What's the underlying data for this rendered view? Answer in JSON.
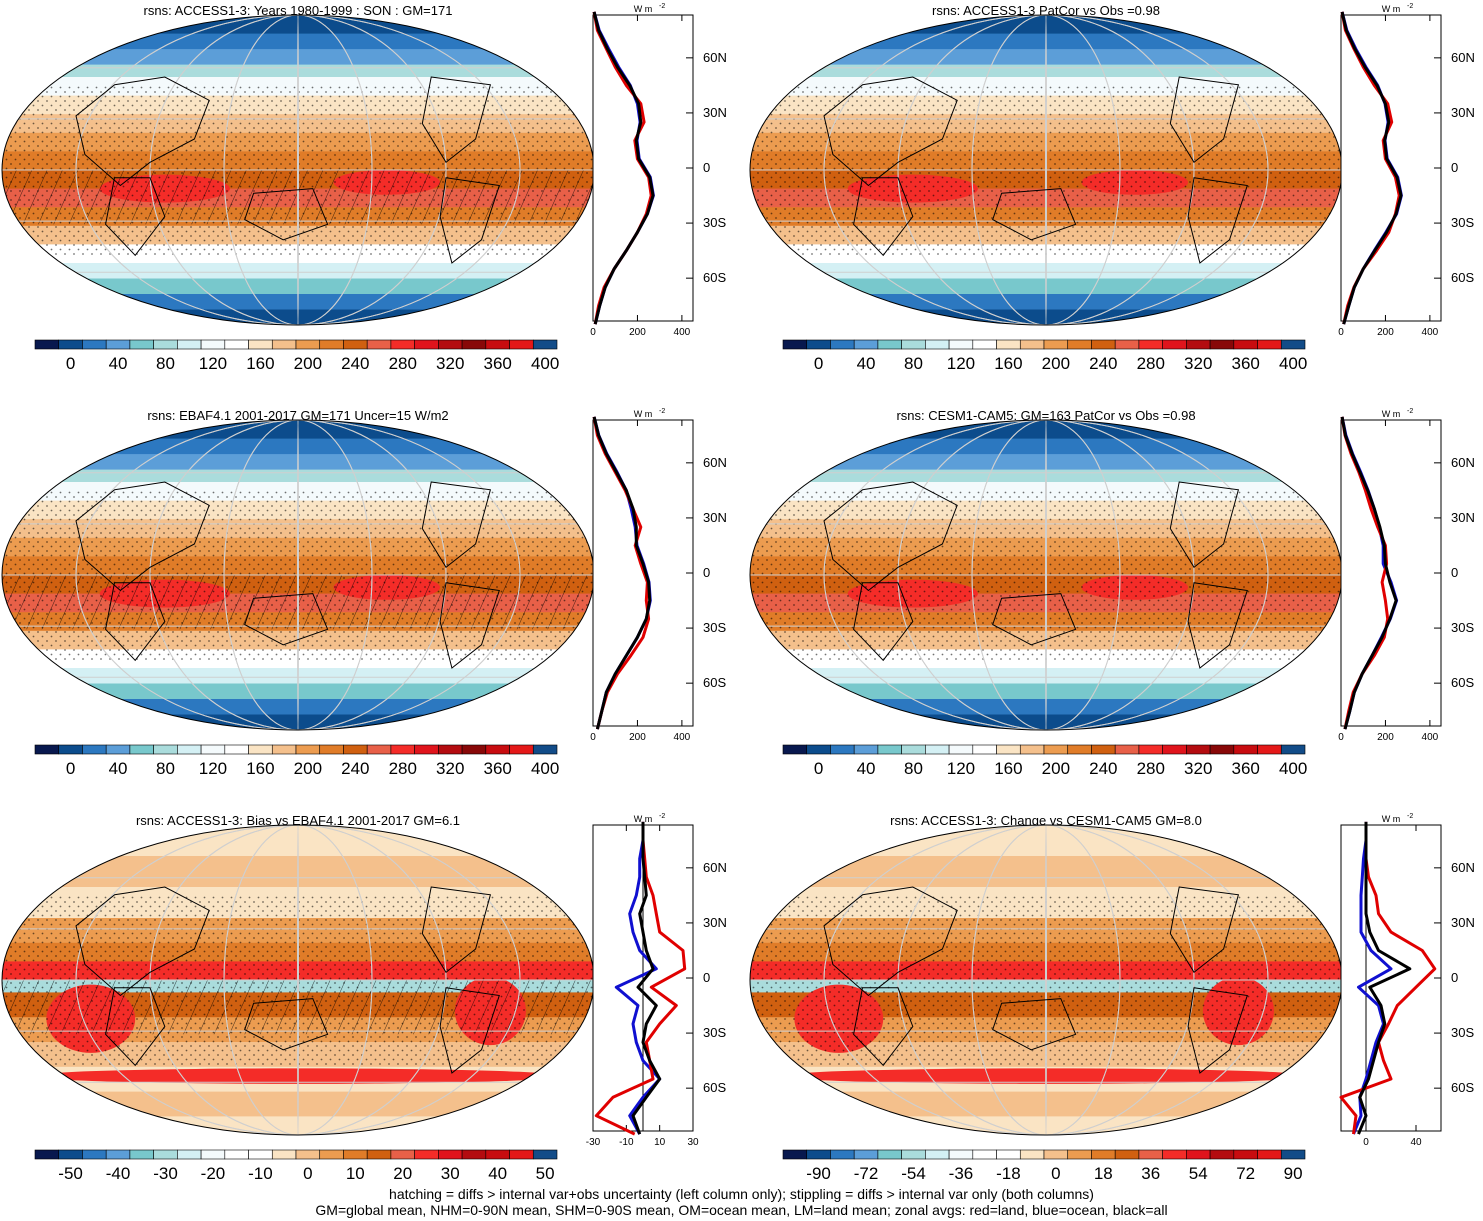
{
  "chart_data": [
    {
      "type": "heatmap",
      "title": "rsns: ACCESS1-3: Years 1980-1999 : SON : GM=171",
      "colorbar": {
        "ticks": [
          "0",
          "40",
          "80",
          "120",
          "160",
          "200",
          "240",
          "280",
          "320",
          "360",
          "400"
        ]
      },
      "profile": {
        "xticks": [
          "0",
          "200",
          "400"
        ],
        "xlim": [
          0,
          450
        ],
        "unit": "W m-2",
        "lat": [
          -85,
          -75,
          -65,
          -55,
          -45,
          -35,
          -25,
          -15,
          -5,
          5,
          15,
          25,
          35,
          45,
          55,
          65,
          75,
          85
        ],
        "series": [
          {
            "name": "all",
            "color": "#000000",
            "values": [
              10,
              30,
              55,
              95,
              150,
              200,
              245,
              270,
              255,
              205,
              195,
              215,
              205,
              165,
              110,
              65,
              25,
              5
            ]
          },
          {
            "name": "land",
            "color": "#e00000",
            "values": [
              10,
              25,
              50,
              95,
              150,
              200,
              240,
              262,
              250,
              200,
              188,
              230,
              215,
              150,
              100,
              60,
              20,
              5
            ]
          },
          {
            "name": "ocean",
            "color": "#1010d0",
            "values": [
              10,
              30,
              55,
              95,
              150,
              200,
              245,
              272,
              258,
              208,
              198,
              212,
              200,
              168,
              115,
              70,
              28,
              5
            ]
          }
        ]
      }
    },
    {
      "type": "heatmap",
      "title": "rsns: ACCESS1-3 PatCor vs Obs =0.98",
      "colorbar": {
        "ticks": [
          "0",
          "40",
          "80",
          "120",
          "160",
          "200",
          "240",
          "280",
          "320",
          "360",
          "400"
        ]
      },
      "profile": {
        "xticks": [
          "0",
          "200",
          "400"
        ],
        "xlim": [
          0,
          450
        ],
        "unit": "W m-2",
        "lat": [
          -85,
          -75,
          -65,
          -55,
          -45,
          -35,
          -25,
          -15,
          -5,
          5,
          15,
          25,
          35,
          45,
          55,
          65,
          75,
          85
        ],
        "series": [
          {
            "name": "all",
            "color": "#000000",
            "values": [
              12,
              35,
              60,
              100,
              152,
              205,
              248,
              270,
              252,
              205,
              196,
              215,
              200,
              162,
              108,
              62,
              24,
              5
            ]
          },
          {
            "name": "land",
            "color": "#e00000",
            "values": [
              12,
              30,
              58,
              100,
              160,
              215,
              245,
              262,
              245,
              200,
              190,
              228,
              210,
              150,
              100,
              58,
              20,
              5
            ]
          },
          {
            "name": "ocean",
            "color": "#1010d0",
            "values": [
              12,
              35,
              60,
              100,
              150,
              202,
              250,
              272,
              255,
              208,
              198,
              212,
              198,
              165,
              112,
              66,
              26,
              5
            ]
          }
        ]
      }
    },
    {
      "type": "heatmap",
      "title": "rsns: EBAF4.1 2001-2017 GM=171 Uncer=15 W/m2",
      "colorbar": {
        "ticks": [
          "0",
          "40",
          "80",
          "120",
          "160",
          "200",
          "240",
          "280",
          "320",
          "360",
          "400"
        ]
      },
      "profile": {
        "xticks": [
          "0",
          "200",
          "400"
        ],
        "xlim": [
          0,
          450
        ],
        "unit": "W m-2",
        "lat": [
          -85,
          -75,
          -65,
          -55,
          -45,
          -35,
          -25,
          -15,
          -5,
          5,
          15,
          25,
          35,
          45,
          55,
          65,
          75,
          85
        ],
        "series": [
          {
            "name": "all",
            "color": "#000000",
            "values": [
              20,
              40,
              60,
              100,
              150,
              200,
              240,
              255,
              250,
              225,
              195,
              195,
              180,
              150,
              105,
              60,
              25,
              5
            ]
          },
          {
            "name": "land",
            "color": "#e00000",
            "values": [
              20,
              40,
              65,
              110,
              170,
              225,
              250,
              240,
              245,
              215,
              190,
              215,
              180,
              145,
              100,
              55,
              20,
              5
            ]
          },
          {
            "name": "ocean",
            "color": "#1010d0",
            "values": [
              20,
              40,
              60,
              100,
              150,
              200,
              240,
              258,
              252,
              228,
              198,
              190,
              172,
              150,
              108,
              62,
              26,
              5
            ]
          }
        ]
      }
    },
    {
      "type": "heatmap",
      "title": "rsns: CESM1-CAM5: GM=163 PatCor vs Obs =0.98",
      "colorbar": {
        "ticks": [
          "0",
          "40",
          "80",
          "120",
          "160",
          "200",
          "240",
          "280",
          "320",
          "360",
          "400"
        ]
      },
      "profile": {
        "xticks": [
          "0",
          "200",
          "400"
        ],
        "xlim": [
          0,
          450
        ],
        "unit": "W m-2",
        "lat": [
          -85,
          -75,
          -65,
          -55,
          -45,
          -35,
          -25,
          -15,
          -5,
          5,
          15,
          25,
          35,
          45,
          55,
          65,
          75,
          85
        ],
        "series": [
          {
            "name": "all",
            "color": "#000000",
            "values": [
              18,
              40,
              60,
              95,
              140,
              185,
              220,
              248,
              220,
              200,
              195,
              175,
              150,
              120,
              85,
              50,
              20,
              5
            ]
          },
          {
            "name": "land",
            "color": "#e00000",
            "values": [
              18,
              35,
              55,
              95,
              150,
              195,
              210,
              200,
              185,
              205,
              200,
              165,
              135,
              110,
              80,
              45,
              18,
              5
            ]
          },
          {
            "name": "ocean",
            "color": "#1010d0",
            "values": [
              18,
              40,
              60,
              95,
              140,
              182,
              222,
              250,
              225,
              190,
              190,
              172,
              150,
              122,
              88,
              52,
              22,
              5
            ]
          }
        ]
      }
    },
    {
      "type": "heatmap",
      "title": "rsns: ACCESS1-3: Bias vs EBAF4.1 2001-2017  GM=6.1",
      "colorbar": {
        "ticks": [
          "-50",
          "-40",
          "-30",
          "-20",
          "-10",
          "0",
          "10",
          "20",
          "30",
          "40",
          "50"
        ]
      },
      "profile": {
        "xticks": [
          "-30",
          "-10",
          "10",
          "30"
        ],
        "xlim": [
          -30,
          30
        ],
        "unit": "W m-2",
        "lat": [
          -85,
          -75,
          -65,
          -55,
          -45,
          -35,
          -25,
          -15,
          -5,
          5,
          15,
          25,
          35,
          45,
          55,
          65,
          75,
          85
        ],
        "series": [
          {
            "name": "all",
            "color": "#000000",
            "values": [
              -2,
              -6,
              2,
              10,
              4,
              0,
              2,
              8,
              -3,
              6,
              2,
              0,
              -2,
              2,
              1,
              0,
              0,
              0
            ]
          },
          {
            "name": "land",
            "color": "#e00000",
            "values": [
              -5,
              -28,
              -18,
              6,
              4,
              2,
              10,
              20,
              5,
              25,
              24,
              10,
              8,
              6,
              2,
              1,
              0,
              0
            ]
          },
          {
            "name": "ocean",
            "color": "#1010d0",
            "values": [
              -2,
              -8,
              0,
              10,
              0,
              -4,
              -6,
              -3,
              -16,
              8,
              -2,
              -6,
              -8,
              -4,
              -2,
              -2,
              0,
              0
            ]
          }
        ]
      }
    },
    {
      "type": "heatmap",
      "title": "rsns: ACCESS1-3: Change vs CESM1-CAM5 GM=8.0",
      "colorbar": {
        "ticks": [
          "-90",
          "-72",
          "-54",
          "-36",
          "-18",
          "0",
          "18",
          "36",
          "54",
          "72",
          "90"
        ]
      },
      "profile": {
        "xticks": [
          "0",
          "40"
        ],
        "xlim": [
          -20,
          60
        ],
        "unit": "W m-2",
        "lat": [
          -85,
          -75,
          -65,
          -55,
          -45,
          -35,
          -25,
          -15,
          -5,
          5,
          15,
          25,
          35,
          45,
          55,
          65,
          75,
          85
        ],
        "series": [
          {
            "name": "all",
            "color": "#000000",
            "values": [
              -6,
              0,
              -5,
              2,
              6,
              10,
              15,
              12,
              3,
              35,
              10,
              3,
              0,
              0,
              0,
              0,
              0,
              0
            ]
          },
          {
            "name": "land",
            "color": "#e00000",
            "values": [
              -10,
              -8,
              -20,
              20,
              14,
              10,
              18,
              25,
              40,
              55,
              45,
              20,
              10,
              8,
              2,
              0,
              0,
              0
            ]
          },
          {
            "name": "ocean",
            "color": "#1010d0",
            "values": [
              -10,
              -4,
              -5,
              0,
              4,
              8,
              14,
              10,
              -6,
              20,
              4,
              -4,
              -4,
              -4,
              -3,
              -2,
              0,
              0
            ]
          }
        ]
      }
    }
  ],
  "panels": [
    {
      "title": "rsns: ACCESS1-3: Years 1980-1999 : SON : GM=171"
    },
    {
      "title": "rsns: ACCESS1-3 PatCor vs Obs =0.98"
    },
    {
      "title": "rsns: EBAF4.1 2001-2017 GM=171 Uncer=15 W/m2"
    },
    {
      "title": "rsns: CESM1-CAM5: GM=163 PatCor vs Obs =0.98"
    },
    {
      "title": "rsns: ACCESS1-3: Bias vs EBAF4.1 2001-2017  GM=6.1"
    },
    {
      "title": "rsns: ACCESS1-3: Change vs CESM1-CAM5 GM=8.0"
    }
  ],
  "lat_labels": [
    "60N",
    "30N",
    "0",
    "30S",
    "60S"
  ],
  "unit_label": "W m",
  "unit_exp": "-2",
  "abs_colors": [
    "#08184e",
    "#0c4c8c",
    "#2c78c0",
    "#5c9ed8",
    "#78c8cc",
    "#aadcdc",
    "#d4f0f4",
    "#f4fafc",
    "#ffffff",
    "#fae4c4",
    "#f4c08c",
    "#ec9c50",
    "#e07c28",
    "#d06010",
    "#e86048",
    "#f42c28",
    "#e0141c",
    "#b40c10",
    "#880808",
    "#c80c10",
    "#e41818",
    "#124c88"
  ],
  "diff_colors": [
    "#08184e",
    "#0c4c8c",
    "#2c78c0",
    "#5c9ed8",
    "#78c8cc",
    "#aadcdc",
    "#d4f0f4",
    "#f4fafc",
    "#ffffff",
    "#ffffff",
    "#fae4c4",
    "#f4c08c",
    "#ec9c50",
    "#e07c28",
    "#d06010",
    "#e86048",
    "#f42c28",
    "#e0141c",
    "#b40c10",
    "#c80c10",
    "#e41818",
    "#124c88"
  ],
  "footer": {
    "line1": "hatching = diffs > internal var+obs uncertainty (left column only); stippling = diffs > internal var only (both columns)",
    "line2": "GM=global mean, NHM=0-90N mean, SHM=0-90S mean, OM=ocean mean, LM=land mean; zonal avgs: red=land, blue=ocean, black=all"
  }
}
